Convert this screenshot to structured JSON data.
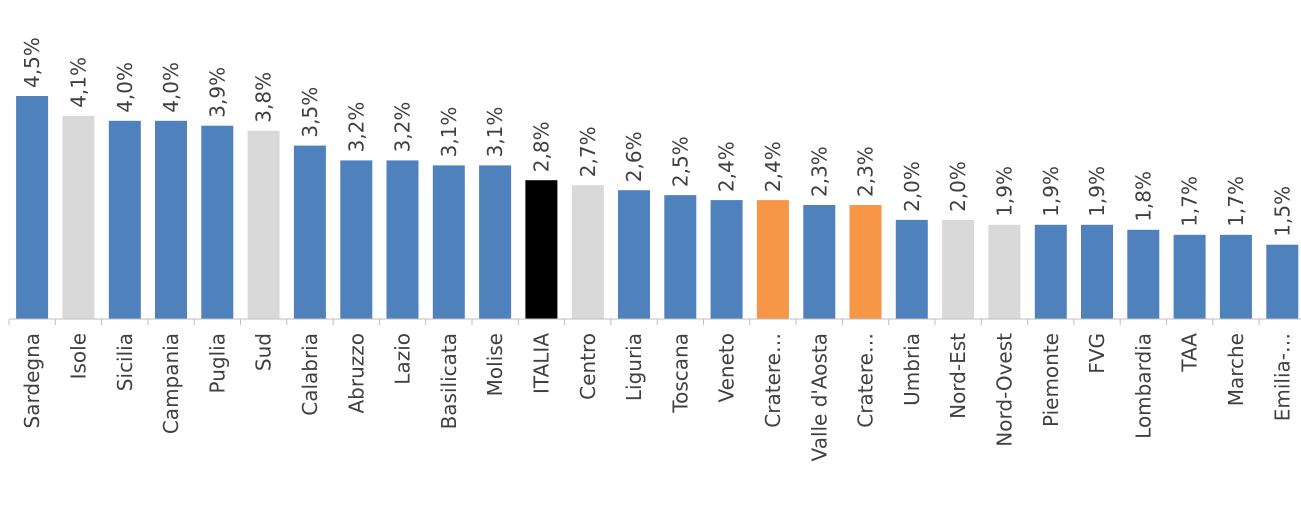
{
  "chart_data": {
    "type": "bar",
    "categories": [
      "Sardegna",
      "Isole",
      "Sicilia",
      "Campania",
      "Puglia",
      "Sud",
      "Calabria",
      "Abruzzo",
      "Lazio",
      "Basilicata",
      "Molise",
      "ITALIA",
      "Centro",
      "Liguria",
      "Toscana",
      "Veneto",
      "Cratere…",
      "Valle d'Aosta",
      "Cratere…",
      "Umbria",
      "Nord-Est",
      "Nord-Ovest",
      "Piemonte",
      "FVG",
      "Lombardia",
      "TAA",
      "Marche",
      "Emilia-…"
    ],
    "values": [
      4.5,
      4.1,
      4.0,
      4.0,
      3.9,
      3.8,
      3.5,
      3.2,
      3.2,
      3.1,
      3.1,
      2.8,
      2.7,
      2.6,
      2.5,
      2.4,
      2.4,
      2.3,
      2.3,
      2.0,
      2.0,
      1.9,
      1.9,
      1.9,
      1.8,
      1.7,
      1.7,
      1.5
    ],
    "value_labels": [
      "4,5%",
      "4,1%",
      "4,0%",
      "4,0%",
      "3,9%",
      "3,8%",
      "3,5%",
      "3,2%",
      "3,2%",
      "3,1%",
      "3,1%",
      "2,8%",
      "2,7%",
      "2,6%",
      "2,5%",
      "2,4%",
      "2,4%",
      "2,3%",
      "2,3%",
      "2,0%",
      "2,0%",
      "1,9%",
      "1,9%",
      "1,9%",
      "1,8%",
      "1,7%",
      "1,7%",
      "1,5%"
    ],
    "bar_colors": [
      "#4f81bd",
      "#d9d9d9",
      "#4f81bd",
      "#4f81bd",
      "#4f81bd",
      "#d9d9d9",
      "#4f81bd",
      "#4f81bd",
      "#4f81bd",
      "#4f81bd",
      "#4f81bd",
      "#000000",
      "#d9d9d9",
      "#4f81bd",
      "#4f81bd",
      "#4f81bd",
      "#f79646",
      "#4f81bd",
      "#f79646",
      "#4f81bd",
      "#d9d9d9",
      "#d9d9d9",
      "#4f81bd",
      "#4f81bd",
      "#4f81bd",
      "#4f81bd",
      "#4f81bd",
      "#4f81bd"
    ],
    "ylim": [
      0,
      4.5
    ],
    "grid": false,
    "legend": "none",
    "title": "",
    "xlabel": "",
    "ylabel": ""
  }
}
